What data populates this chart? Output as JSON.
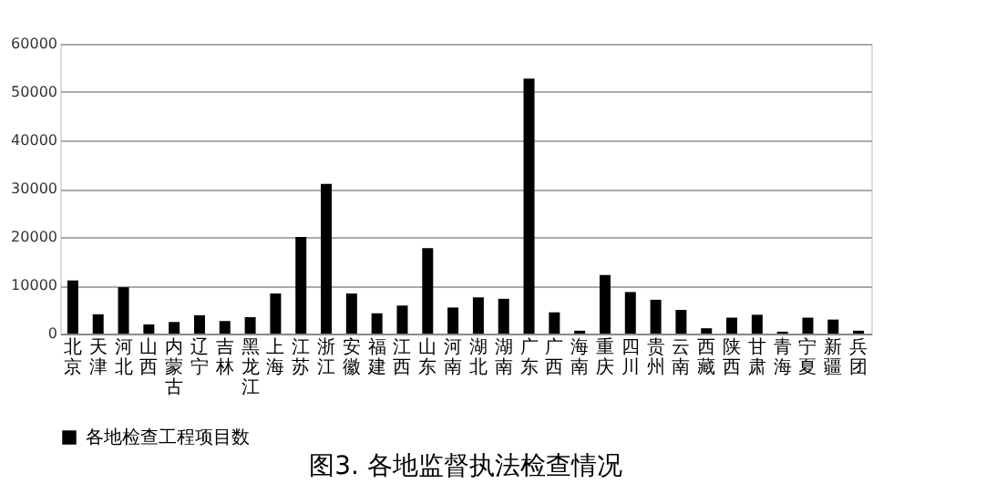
{
  "chart_data": {
    "type": "bar",
    "title": "图3. 各地监督执法检查情况",
    "categories": [
      "北京",
      "天津",
      "河北",
      "山西",
      "内蒙古",
      "辽宁",
      "吉林",
      "黑龙江",
      "上海",
      "江苏",
      "浙江",
      "安徽",
      "福建",
      "江西",
      "山东",
      "河南",
      "湖北",
      "湖南",
      "广东",
      "广西",
      "海南",
      "重庆",
      "四川",
      "贵州",
      "云南",
      "西藏",
      "陕西",
      "甘肃",
      "青海",
      "宁夏",
      "新疆",
      "兵团"
    ],
    "series": [
      {
        "name": "各地检查工程项目数",
        "color": "#000000",
        "values": [
          11000,
          4000,
          9600,
          1900,
          2400,
          3800,
          2600,
          3400,
          8300,
          20000,
          31000,
          8300,
          4200,
          5800,
          17700,
          5400,
          7500,
          7200,
          52800,
          4400,
          600,
          12100,
          8600,
          7000,
          4900,
          1100,
          3300,
          3900,
          400,
          3300,
          2900,
          600
        ]
      }
    ],
    "ylim": [
      0,
      60000
    ],
    "yticks": [
      0,
      10000,
      20000,
      30000,
      40000,
      50000,
      60000
    ],
    "grid": "y",
    "legend": "bottom"
  }
}
